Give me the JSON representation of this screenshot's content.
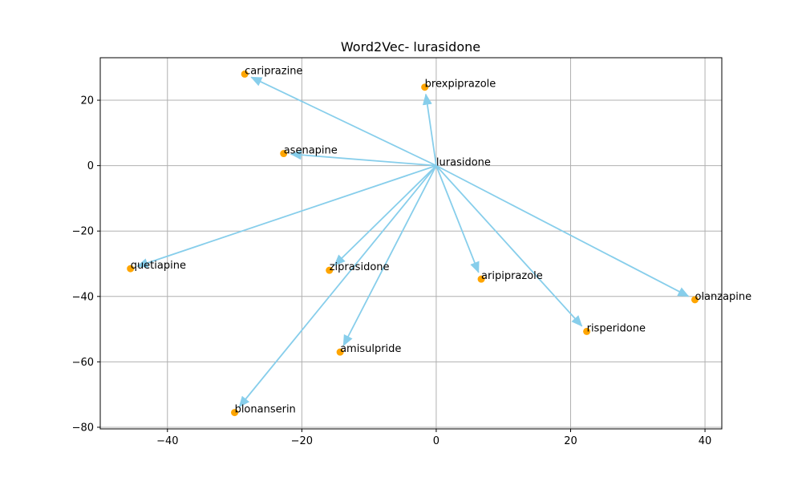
{
  "chart_data": {
    "type": "scatter",
    "title": "Word2Vec- lurasidone",
    "xlabel": "",
    "ylabel": "",
    "xlim": [
      -50,
      42.5
    ],
    "ylim": [
      -80.5,
      33
    ],
    "x_ticks": [
      -40,
      -20,
      0,
      20,
      40
    ],
    "y_ticks": [
      20,
      0,
      -20,
      -40,
      -60,
      -80
    ],
    "x_tick_labels": [
      "−40",
      "−20",
      "0",
      "20",
      "40"
    ],
    "y_tick_labels": [
      "20",
      "0",
      "−20",
      "−40",
      "−60",
      "−80"
    ],
    "grid": true,
    "arrow_color": "#87CEEB",
    "point_color": "#FFA500",
    "center": {
      "label": "lurasidone",
      "x": 0,
      "y": 0
    },
    "points": [
      {
        "label": "cariprazine",
        "x": -28.5,
        "y": 28
      },
      {
        "label": "brexpiprazole",
        "x": -1.7,
        "y": 24
      },
      {
        "label": "asenapine",
        "x": -22.7,
        "y": 3.7
      },
      {
        "label": "quetiapine",
        "x": -45.5,
        "y": -31.5
      },
      {
        "label": "ziprasidone",
        "x": -15.9,
        "y": -32
      },
      {
        "label": "aripiprazole",
        "x": 6.7,
        "y": -34.7
      },
      {
        "label": "olanzapine",
        "x": 38.5,
        "y": -41
      },
      {
        "label": "risperidone",
        "x": 22.4,
        "y": -50.7
      },
      {
        "label": "amisulpride",
        "x": -14.3,
        "y": -57
      },
      {
        "label": "blonanserin",
        "x": -30,
        "y": -75.5
      }
    ]
  }
}
